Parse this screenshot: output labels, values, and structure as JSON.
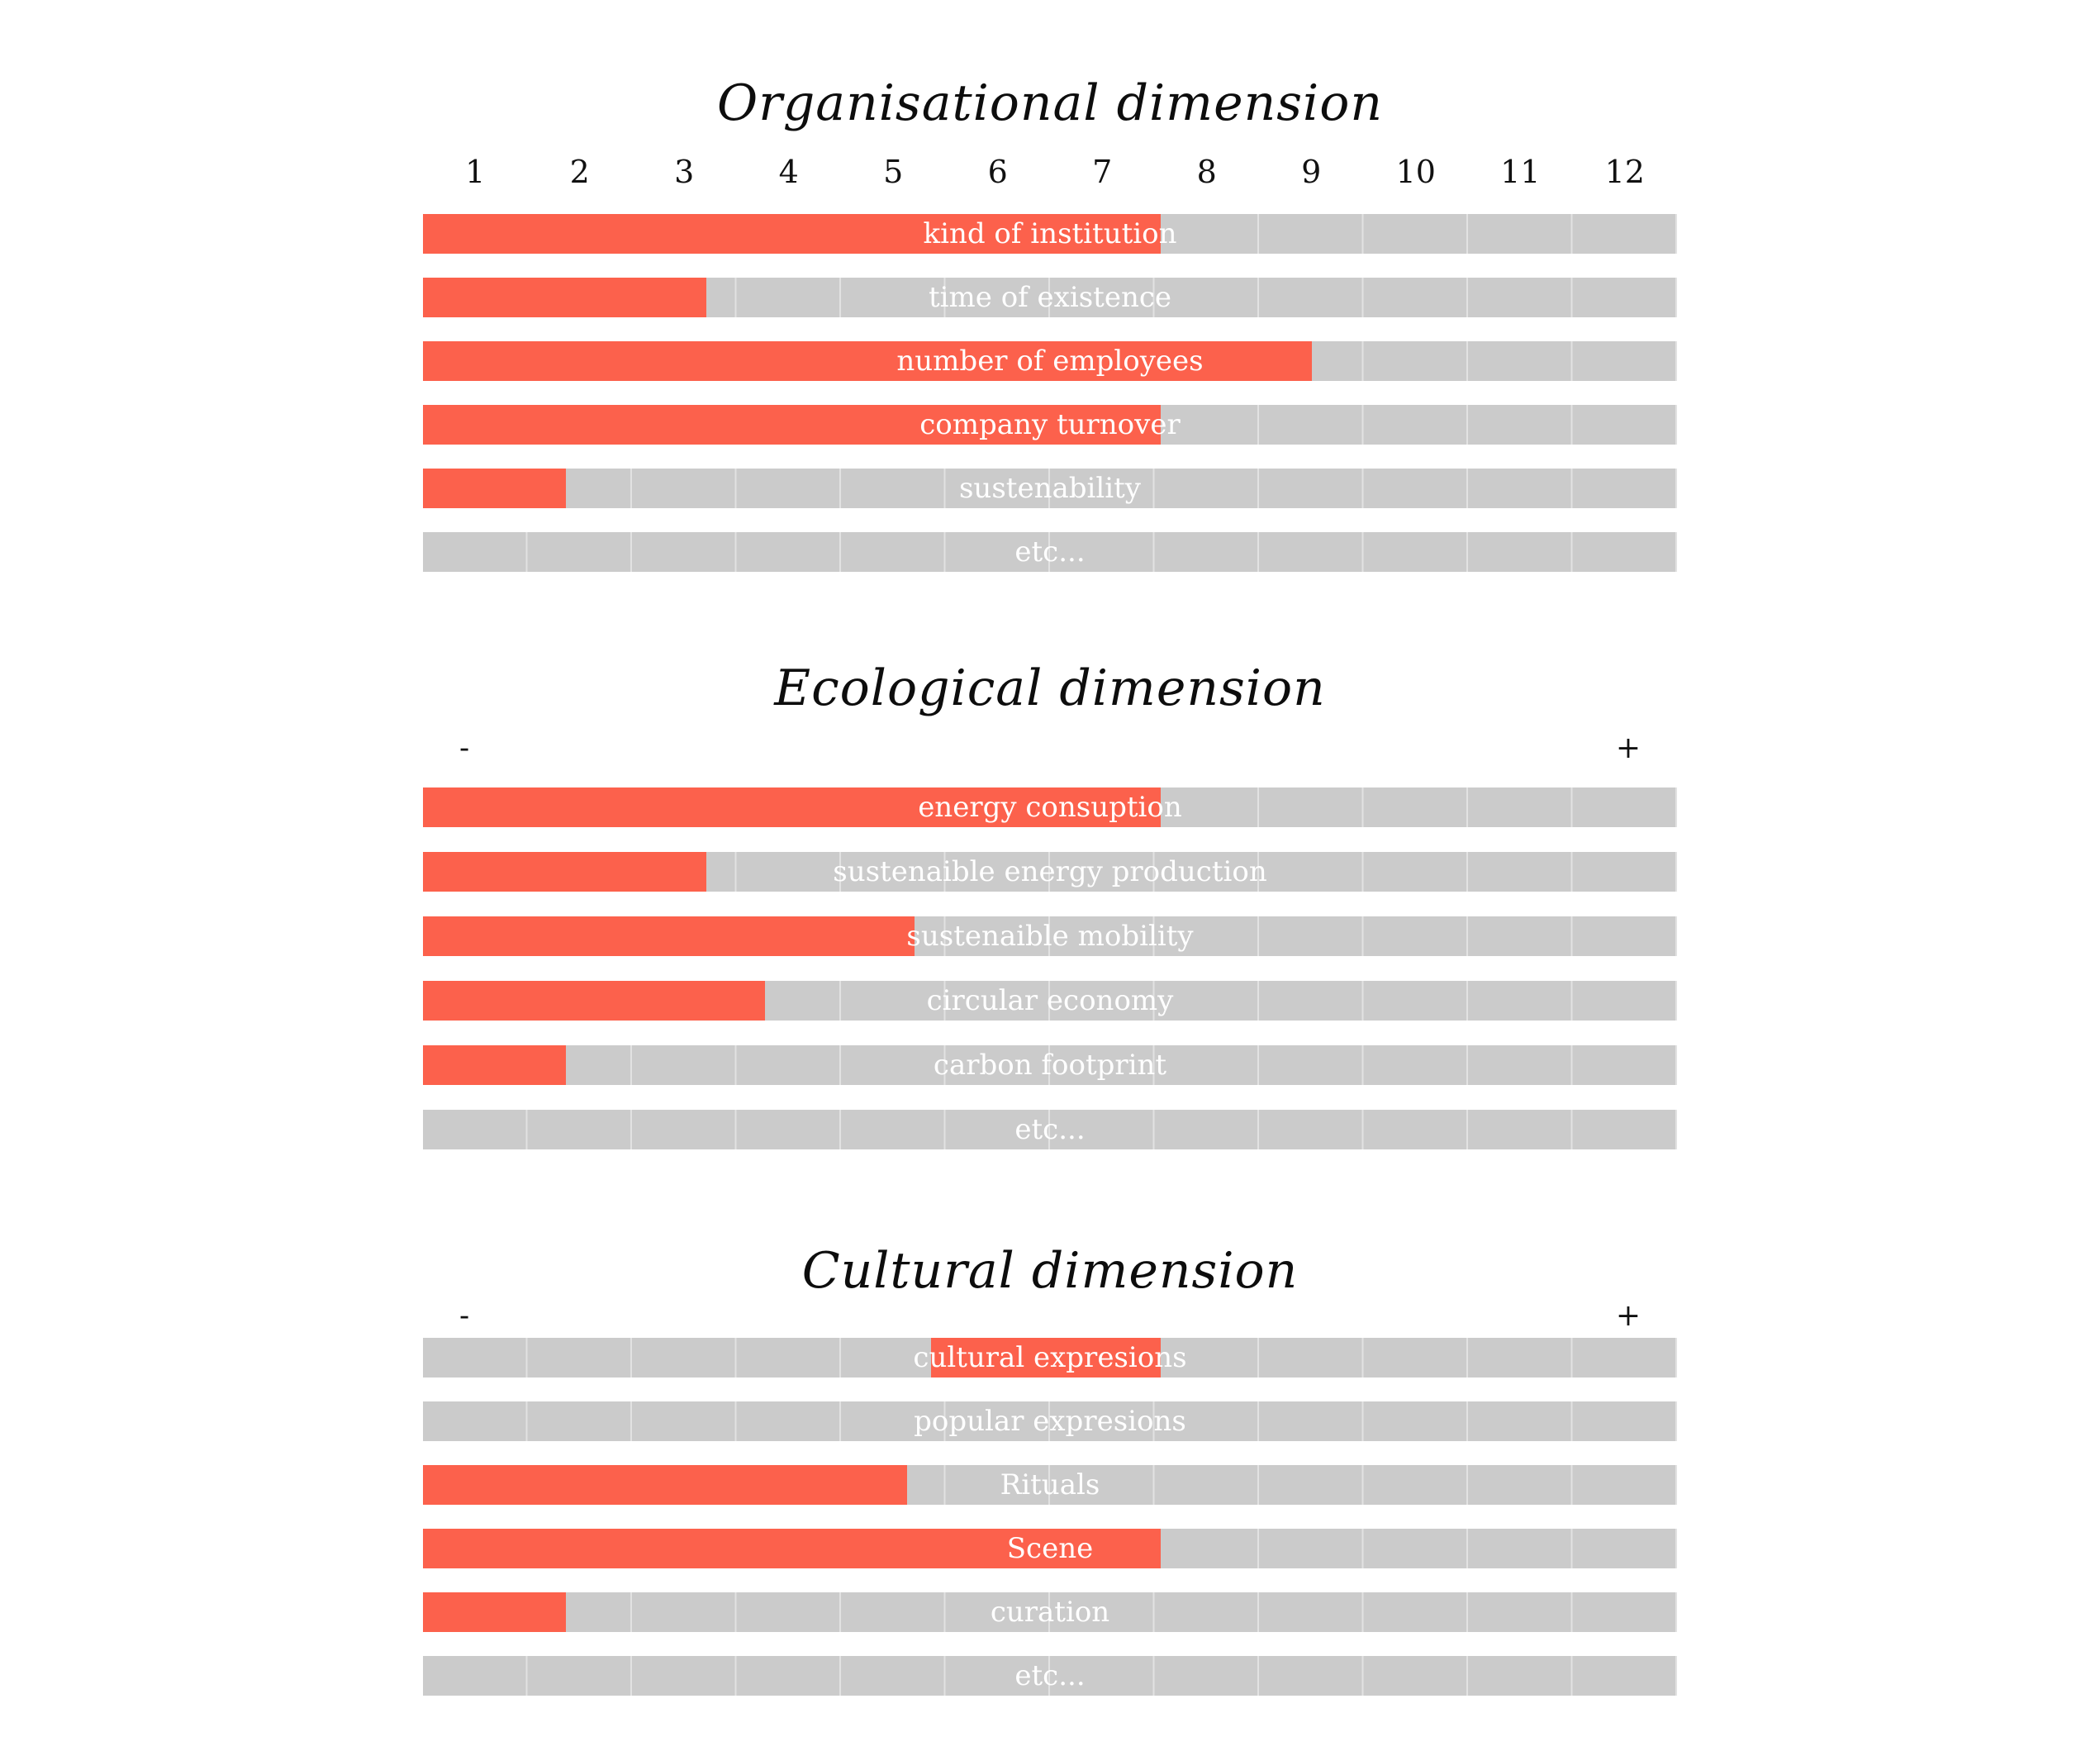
{
  "palette": {
    "fill_color": "#fc614c",
    "track_color": "#cbcbcb",
    "divider_color": "#e2e2e2",
    "label_color": "#ffffff",
    "text_color": "#111111",
    "background": "#ffffff"
  },
  "sections": [
    {
      "title": "Organisational dimension",
      "scale": {
        "type": "numeric",
        "ticks": [
          "1",
          "2",
          "3",
          "4",
          "5",
          "6",
          "7",
          "8",
          "9",
          "10",
          "11",
          "12"
        ]
      },
      "bars": [
        {
          "label": "kind of institution",
          "value": 7.1,
          "max": 12,
          "fill_left": "0%",
          "fill_width": "58.8%"
        },
        {
          "label": "time of existence",
          "value": 2.7,
          "max": 12,
          "fill_left": "0%",
          "fill_width": "22.6%"
        },
        {
          "label": "number of employees",
          "value": 8.5,
          "max": 12,
          "fill_left": "0%",
          "fill_width": "70.9%"
        },
        {
          "label": "company turnover",
          "value": 7.1,
          "max": 12,
          "fill_left": "0%",
          "fill_width": "58.8%"
        },
        {
          "label": "sustenability",
          "value": 1.4,
          "max": 12,
          "fill_left": "0%",
          "fill_width": "11.4%"
        },
        {
          "label": "etc...",
          "value": 0,
          "max": 12,
          "fill_left": "0%",
          "fill_width": "0%"
        }
      ]
    },
    {
      "title": "Ecological dimension",
      "scale": {
        "type": "minus-plus",
        "minus": "-",
        "plus": "+"
      },
      "bars": [
        {
          "label": "energy consuption",
          "value": 7.1,
          "max": 12,
          "fill_left": "0%",
          "fill_width": "58.8%"
        },
        {
          "label": "sustenaible energy production",
          "value": 2.7,
          "max": 12,
          "fill_left": "0%",
          "fill_width": "22.6%"
        },
        {
          "label": "sustenaible mobility",
          "value": 4.7,
          "max": 12,
          "fill_left": "0%",
          "fill_width": "39.2%"
        },
        {
          "label": "circular economy",
          "value": 3.3,
          "max": 12,
          "fill_left": "0%",
          "fill_width": "27.3%"
        },
        {
          "label": "carbon footprint",
          "value": 1.4,
          "max": 12,
          "fill_left": "0%",
          "fill_width": "11.4%"
        },
        {
          "label": "etc...",
          "value": 0,
          "max": 12,
          "fill_left": "0%",
          "fill_width": "0%"
        }
      ]
    },
    {
      "title": "Cultural dimension",
      "scale": {
        "type": "minus-plus",
        "minus": "-",
        "plus": "+"
      },
      "bars": [
        {
          "label": "cultural expresions",
          "value_start": 4.9,
          "value_end": 7.1,
          "max": 12,
          "fill_left": "40.5%",
          "fill_width": "18.3%"
        },
        {
          "label": "popular expresions",
          "value": 0,
          "max": 12,
          "fill_left": "0%",
          "fill_width": "0%"
        },
        {
          "label": "Rituals",
          "value": 4.6,
          "max": 12,
          "fill_left": "0%",
          "fill_width": "38.6%"
        },
        {
          "label": "Scene",
          "value": 7.1,
          "max": 12,
          "fill_left": "0%",
          "fill_width": "58.8%"
        },
        {
          "label": "curation",
          "value": 1.4,
          "max": 12,
          "fill_left": "0%",
          "fill_width": "11.4%"
        },
        {
          "label": "etc...",
          "value": 0,
          "max": 12,
          "fill_left": "0%",
          "fill_width": "0%"
        }
      ]
    }
  ],
  "chart_data": [
    {
      "type": "bar",
      "orientation": "horizontal",
      "title": "Organisational dimension",
      "xlabel": "",
      "ylabel": "",
      "x_range": [
        0,
        12
      ],
      "x_ticks": [
        1,
        2,
        3,
        4,
        5,
        6,
        7,
        8,
        9,
        10,
        11,
        12
      ],
      "grid": "12 vertical segment dividers on gray track",
      "categories": [
        "kind of institution",
        "time of existence",
        "number of employees",
        "company turnover",
        "sustenability",
        "etc..."
      ],
      "values": [
        7.1,
        2.7,
        8.5,
        7.1,
        1.4,
        0
      ]
    },
    {
      "type": "bar",
      "orientation": "horizontal",
      "title": "Ecological dimension",
      "xlabel": "",
      "ylabel": "",
      "x_range": [
        0,
        12
      ],
      "x_axis_endpoint_labels": [
        "-",
        "+"
      ],
      "grid": "12 vertical segment dividers on gray track",
      "categories": [
        "energy consuption",
        "sustenaible energy production",
        "sustenaible mobility",
        "circular economy",
        "carbon footprint",
        "etc..."
      ],
      "values": [
        7.1,
        2.7,
        4.7,
        3.3,
        1.4,
        0
      ]
    },
    {
      "type": "bar",
      "orientation": "horizontal",
      "title": "Cultural dimension",
      "xlabel": "",
      "ylabel": "",
      "x_range": [
        0,
        12
      ],
      "x_axis_endpoint_labels": [
        "-",
        "+"
      ],
      "grid": "12 vertical segment dividers on gray track",
      "categories": [
        "cultural expresions",
        "popular expresions",
        "Rituals",
        "Scene",
        "curation",
        "etc..."
      ],
      "values": [
        [
          4.9,
          7.1
        ],
        0,
        4.7,
        7.1,
        1.4,
        0
      ],
      "annotations": "cultural expresions bar is a floating filled segment from ~4.9 to ~7.1; all other fills start at 0"
    }
  ]
}
